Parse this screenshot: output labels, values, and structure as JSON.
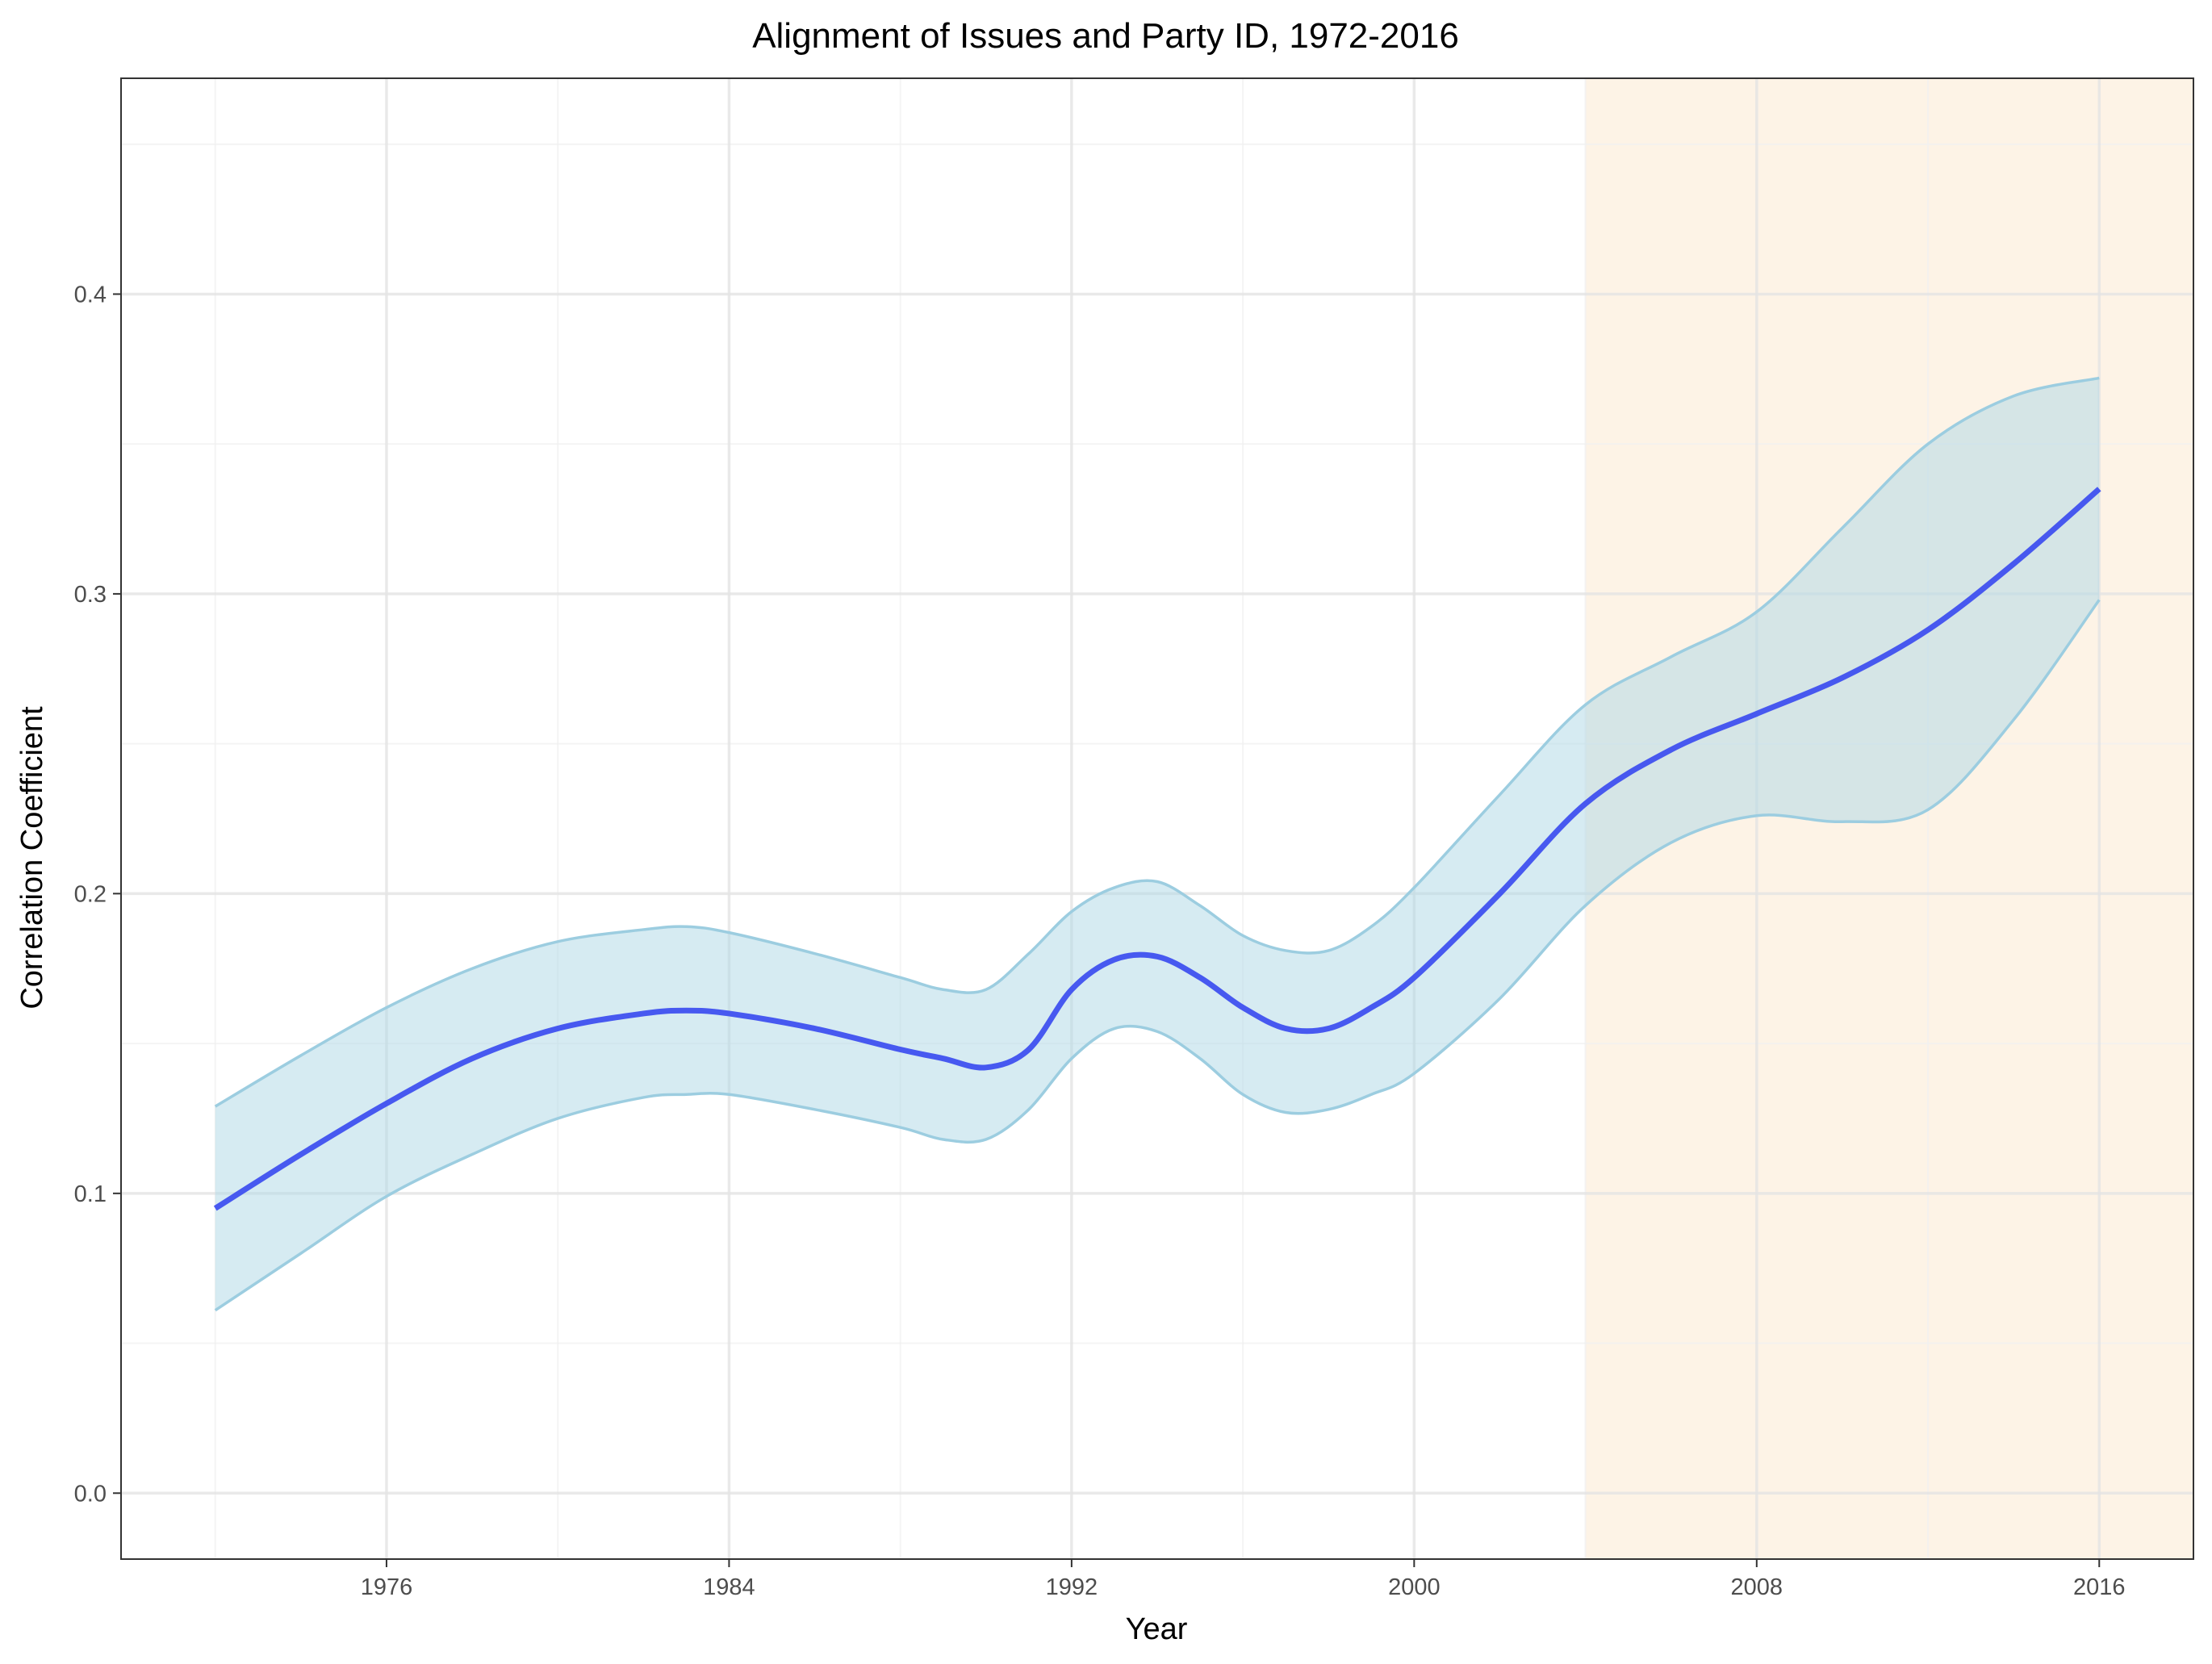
{
  "chart_data": {
    "type": "line",
    "title": "Alignment of Issues and Party ID, 1972-2016",
    "xlabel": "Year",
    "ylabel": "Correlation Coefficient",
    "xlim": [
      1969.8,
      2018.2
    ],
    "ylim": [
      -0.022,
      0.472
    ],
    "x_ticks": [
      1976,
      1984,
      1992,
      2000,
      2008,
      2016
    ],
    "x_minor_ticks": [
      1972,
      1980,
      1988,
      1996,
      2004,
      2012
    ],
    "y_ticks": [
      0.0,
      0.1,
      0.2,
      0.3,
      0.4
    ],
    "y_tick_labels": [
      "0.0",
      "0.1",
      "0.2",
      "0.3",
      "0.4"
    ],
    "y_minor_ticks": [
      0.05,
      0.15,
      0.25,
      0.35,
      0.45
    ],
    "grid": true,
    "legend": "none",
    "highlight_region": {
      "x_start": 2004,
      "x_end": 2018.2,
      "color": "#fdf3e6"
    },
    "colors": {
      "line": "#3b4cf0",
      "band_fill": "#add8e6",
      "band_edge": "#9ccde0",
      "panel_border": "#333333",
      "grid_major": "#e3e3e3",
      "grid_minor": "#f0f0f0"
    },
    "series": [
      {
        "x": [
          1972,
          1974,
          1976,
          1978,
          1980,
          1982,
          1983,
          1984,
          1986,
          1988,
          1989,
          1990,
          1991,
          1992,
          1993,
          1994,
          1995,
          1996,
          1997,
          1998,
          1999,
          2000,
          2002,
          2004,
          2006,
          2008,
          2010,
          2012,
          2014,
          2016
        ],
        "y": [
          0.095,
          0.113,
          0.13,
          0.145,
          0.155,
          0.16,
          0.161,
          0.16,
          0.155,
          0.148,
          0.145,
          0.142,
          0.148,
          0.168,
          0.178,
          0.179,
          0.172,
          0.162,
          0.155,
          0.155,
          0.162,
          0.172,
          0.2,
          0.23,
          0.248,
          0.26,
          0.272,
          0.288,
          0.31,
          0.335
        ],
        "lower": [
          0.061,
          0.08,
          0.099,
          0.113,
          0.125,
          0.132,
          0.133,
          0.133,
          0.128,
          0.122,
          0.118,
          0.118,
          0.128,
          0.145,
          0.155,
          0.154,
          0.145,
          0.133,
          0.127,
          0.128,
          0.133,
          0.14,
          0.165,
          0.196,
          0.217,
          0.226,
          0.224,
          0.228,
          0.258,
          0.298
        ],
        "upper": [
          0.129,
          0.146,
          0.162,
          0.175,
          0.184,
          0.188,
          0.189,
          0.187,
          0.18,
          0.172,
          0.168,
          0.168,
          0.18,
          0.194,
          0.202,
          0.204,
          0.196,
          0.186,
          0.181,
          0.181,
          0.189,
          0.202,
          0.233,
          0.263,
          0.279,
          0.294,
          0.322,
          0.35,
          0.366,
          0.372
        ]
      }
    ]
  }
}
